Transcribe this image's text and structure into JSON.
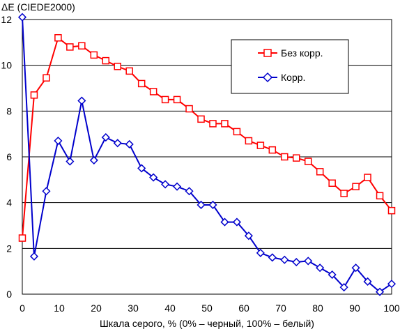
{
  "chart_data": {
    "type": "line",
    "title": "",
    "ylabel": "ΔE (CIEDE2000)",
    "xlabel": "Шкала серого, % (0% – черный, 100% – белый)",
    "xlim": [
      0,
      100
    ],
    "ylim": [
      0,
      12
    ],
    "xticks": [
      "0",
      "10",
      "20",
      "30",
      "40",
      "50",
      "60",
      "70",
      "80",
      "90",
      "100"
    ],
    "yticks": [
      "0",
      "2",
      "4",
      "6",
      "8",
      "10",
      "12"
    ],
    "grid": "horizontal",
    "legend_position": "top-right",
    "series": [
      {
        "name": "Без корр.",
        "color": "#ff0000",
        "marker": "square",
        "x": [
          0,
          3.2,
          6.5,
          9.7,
          12.9,
          16.1,
          19.4,
          22.6,
          25.8,
          29,
          32.3,
          35.5,
          38.7,
          41.9,
          45.2,
          48.4,
          51.6,
          54.8,
          58.1,
          61.3,
          64.5,
          67.7,
          71,
          74.2,
          77.4,
          80.6,
          83.9,
          87.1,
          90.3,
          93.5,
          96.8,
          100
        ],
        "values": [
          2.45,
          8.7,
          9.45,
          11.2,
          10.8,
          10.85,
          10.45,
          10.2,
          9.95,
          9.75,
          9.2,
          8.85,
          8.5,
          8.5,
          8.1,
          7.65,
          7.45,
          7.45,
          7.1,
          6.7,
          6.5,
          6.3,
          6.0,
          5.95,
          5.8,
          5.35,
          4.85,
          4.4,
          4.7,
          5.1,
          4.3,
          3.65
        ]
      },
      {
        "name": "Корр.",
        "color": "#0000cc",
        "marker": "diamond",
        "x": [
          0,
          3.2,
          6.5,
          9.7,
          12.9,
          16.1,
          19.4,
          22.6,
          25.8,
          29,
          32.3,
          35.5,
          38.7,
          41.9,
          45.2,
          48.4,
          51.6,
          54.8,
          58.1,
          61.3,
          64.5,
          67.7,
          71,
          74.2,
          77.4,
          80.6,
          83.9,
          87.1,
          90.3,
          93.5,
          96.8,
          100
        ],
        "values": [
          12.1,
          1.65,
          4.5,
          6.7,
          5.8,
          8.45,
          5.85,
          6.85,
          6.6,
          6.55,
          5.5,
          5.1,
          4.8,
          4.7,
          4.5,
          3.9,
          3.9,
          3.15,
          3.15,
          2.55,
          1.8,
          1.6,
          1.5,
          1.4,
          1.45,
          1.15,
          0.85,
          0.3,
          1.15,
          0.55,
          0.1,
          0.45
        ]
      }
    ]
  }
}
